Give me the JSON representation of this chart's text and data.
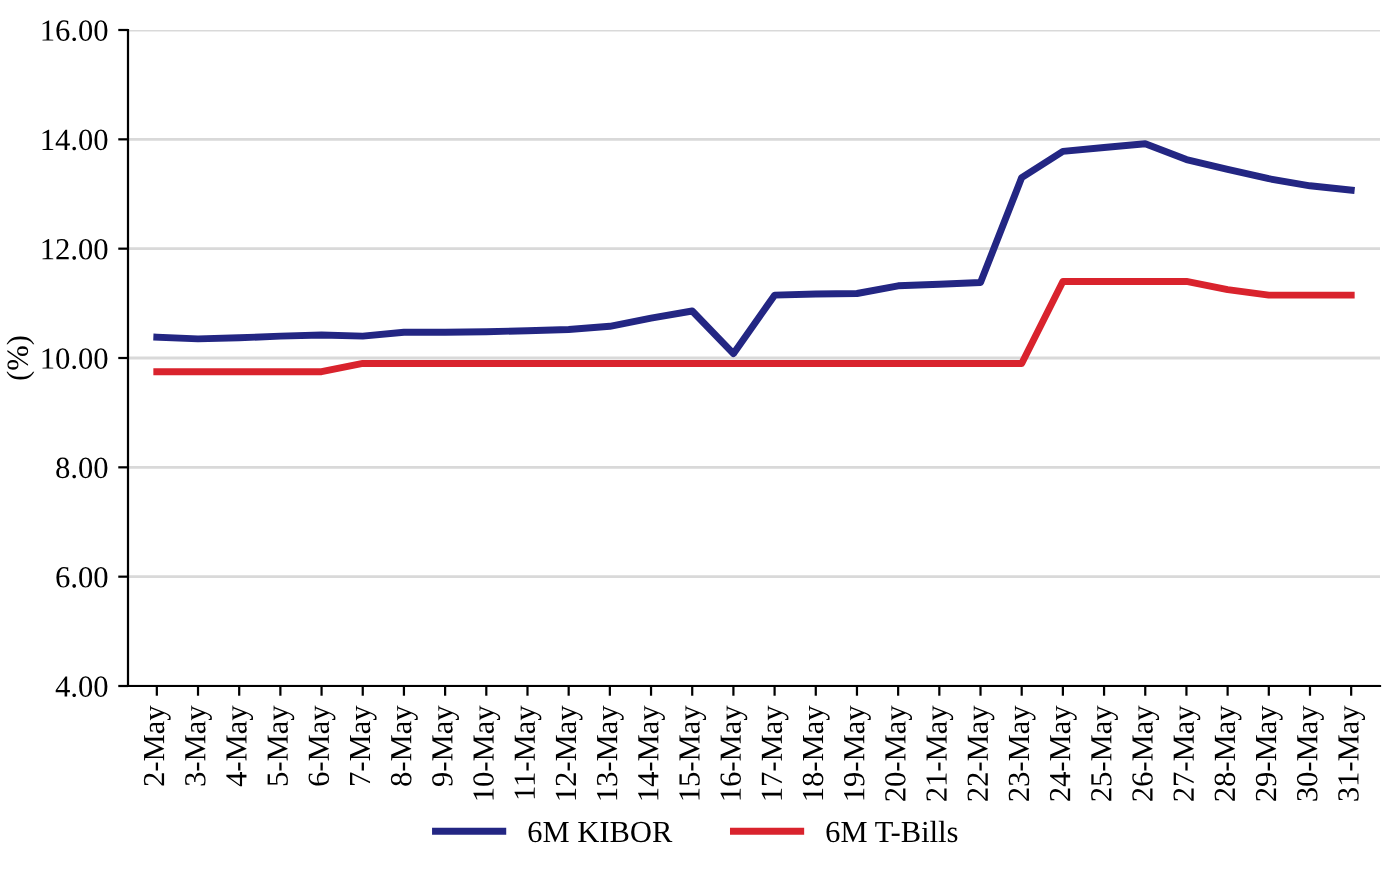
{
  "chart_data": {
    "type": "line",
    "ylabel": "(%)",
    "categories": [
      "2-May",
      "3-May",
      "4-May",
      "5-May",
      "6-May",
      "7-May",
      "8-May",
      "9-May",
      "10-May",
      "11-May",
      "12-May",
      "13-May",
      "14-May",
      "15-May",
      "16-May",
      "17-May",
      "18-May",
      "19-May",
      "20-May",
      "21-May",
      "22-May",
      "23-May",
      "24-May",
      "25-May",
      "26-May",
      "27-May",
      "28-May",
      "29-May",
      "30-May",
      "31-May"
    ],
    "series": [
      {
        "name": "6M KIBOR",
        "color": "#232683",
        "values": [
          10.38,
          10.35,
          10.37,
          10.4,
          10.42,
          10.4,
          10.47,
          10.47,
          10.48,
          10.5,
          10.52,
          10.58,
          10.73,
          10.86,
          10.08,
          11.15,
          11.17,
          11.18,
          11.32,
          11.35,
          11.38,
          13.3,
          13.78,
          13.85,
          13.92,
          13.63,
          13.45,
          13.28,
          13.15,
          13.07
        ]
      },
      {
        "name": "6M T-Bills",
        "color": "#d9232d",
        "values": [
          9.75,
          9.75,
          9.75,
          9.75,
          9.75,
          9.9,
          9.9,
          9.9,
          9.9,
          9.9,
          9.9,
          9.9,
          9.9,
          9.9,
          9.9,
          9.9,
          9.9,
          9.9,
          9.9,
          9.9,
          9.9,
          9.9,
          11.4,
          11.4,
          11.4,
          11.4,
          11.25,
          11.15,
          11.15,
          11.15
        ]
      }
    ],
    "ylim": [
      4,
      16
    ],
    "yticks": [
      {
        "value": 4,
        "label": "4.00"
      },
      {
        "value": 6,
        "label": "6.00"
      },
      {
        "value": 8,
        "label": "8.00"
      },
      {
        "value": 10,
        "label": "10.00"
      },
      {
        "value": 12,
        "label": "12.00"
      },
      {
        "value": 14,
        "label": "14.00"
      },
      {
        "value": 16,
        "label": "16.00"
      }
    ],
    "grid": "y",
    "legend": "bottom",
    "marker": "none",
    "line_style": "solid"
  }
}
